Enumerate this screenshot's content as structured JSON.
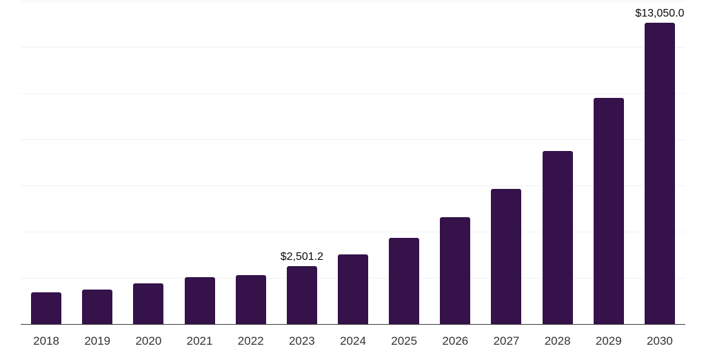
{
  "chart_data": {
    "type": "bar",
    "title": "",
    "xlabel": "",
    "ylabel": "",
    "legend": "none",
    "grid": true,
    "categories": [
      "2018",
      "2019",
      "2020",
      "2021",
      "2022",
      "2023",
      "2024",
      "2025",
      "2026",
      "2027",
      "2028",
      "2029",
      "2030"
    ],
    "values": [
      1370,
      1490,
      1760,
      2025,
      2115,
      2501.2,
      3010,
      3720,
      4620,
      5840,
      7505,
      9800,
      13050
    ],
    "value_labels": [
      "",
      "",
      "",
      "",
      "",
      "$2,501.2",
      "",
      "",
      "",
      "",
      "",
      "",
      "$13,050.0"
    ],
    "ylim": [
      0,
      14000
    ],
    "gridline_step": 2000,
    "colors": {
      "bar": "#35124A",
      "gridline": "#F2F2F2",
      "axis_line": "#3C3C3C",
      "tick_label": "#333333",
      "value_label": "#0A0A0A",
      "background": "#FFFFFF"
    }
  }
}
